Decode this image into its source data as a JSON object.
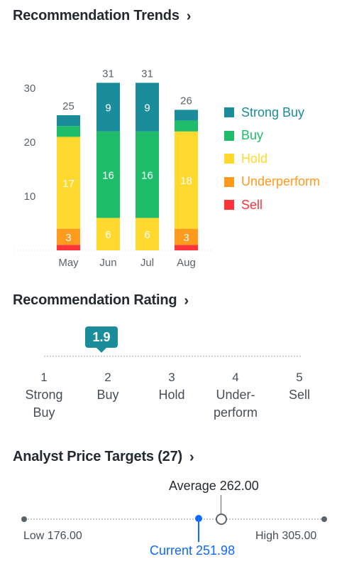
{
  "trends": {
    "title": "Recommendation Trends",
    "chevron": "›"
  },
  "rating": {
    "title": "Recommendation Rating",
    "chevron": "›",
    "value": "1.9",
    "value_num": 1.9,
    "scale": [
      {
        "num": "1",
        "label": "Strong Buy"
      },
      {
        "num": "2",
        "label": "Buy"
      },
      {
        "num": "3",
        "label": "Hold"
      },
      {
        "num": "4",
        "label": "Under-perform"
      },
      {
        "num": "5",
        "label": "Sell"
      }
    ]
  },
  "targets": {
    "title": "Analyst Price Targets (27)",
    "chevron": "›",
    "low_label": "Low 176.00",
    "high_label": "High 305.00",
    "average_label": "Average 262.00",
    "current_label": "Current 251.98",
    "low": 176.0,
    "high": 305.0,
    "average": 262.0,
    "current": 251.98
  },
  "colors": {
    "strong_buy": "#1a8c9a",
    "buy": "#1ebd6a",
    "hold": "#ffd92e",
    "underperform": "#ff9a1c",
    "sell": "#ff333a",
    "accent": "#0f69ff"
  },
  "chart_data": {
    "type": "bar",
    "stacked": true,
    "categories": [
      "May",
      "Jun",
      "Jul",
      "Aug"
    ],
    "totals": [
      25,
      31,
      31,
      26
    ],
    "ylim": [
      0,
      31
    ],
    "yticks": [
      10,
      20,
      30
    ],
    "series": [
      {
        "name": "Strong Buy",
        "color": "#1a8c9a",
        "values": [
          2,
          9,
          9,
          2
        ]
      },
      {
        "name": "Buy",
        "color": "#1ebd6a",
        "values": [
          2,
          16,
          16,
          2
        ]
      },
      {
        "name": "Hold",
        "color": "#ffd92e",
        "values": [
          17,
          6,
          6,
          18
        ]
      },
      {
        "name": "Underperform",
        "color": "#ff9a1c",
        "values": [
          3,
          0,
          0,
          3
        ]
      },
      {
        "name": "Sell",
        "color": "#ff333a",
        "values": [
          1,
          0,
          0,
          1
        ]
      }
    ],
    "legend_position": "right"
  }
}
